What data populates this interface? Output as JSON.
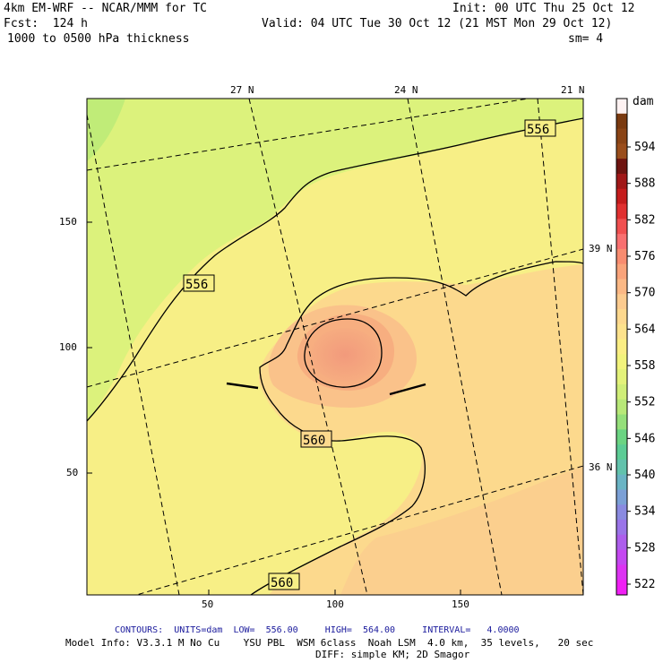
{
  "header": {
    "model": "4km EM-WRF -- NCAR/MMM for TC",
    "init": "Init: 00 UTC Thu 25 Oct 12",
    "forecast": "Fcst:  124 h",
    "valid": "Valid: 04 UTC Tue 30 Oct 12 (21 MST Mon 29 Oct 12)",
    "field": "1000 to 0500 hPa thickness",
    "smoothing": "sm= 4"
  },
  "colorbar": {
    "unit": "dam",
    "labels": [
      "594",
      "588",
      "582",
      "576",
      "570",
      "564",
      "558",
      "552",
      "546",
      "540",
      "534",
      "528",
      "522"
    ],
    "colors": [
      "#fef2f2",
      "#7a3a10",
      "#8a4416",
      "#9a4e1c",
      "#6e1410",
      "#a01818",
      "#c41c1c",
      "#e03030",
      "#f05050",
      "#f87070",
      "#f88c70",
      "#f9a37a",
      "#fbb885",
      "#fccb8f",
      "#fdd88e",
      "#fde28c",
      "#fbee84",
      "#f2f37c",
      "#e3f27a",
      "#d0ee78",
      "#b8e878",
      "#95df7a",
      "#6bd482",
      "#5ccc95",
      "#62c2ac",
      "#6ab4c4",
      "#7ba0d6",
      "#8a8ae0",
      "#9a74e8",
      "#ad5eec",
      "#c448f0",
      "#dc34f2",
      "#f020f4"
    ]
  },
  "axes": {
    "x_ticks": [
      "50",
      "100",
      "150"
    ],
    "y_ticks": [
      "150",
      "100",
      "50"
    ],
    "lat_labels_top": [
      "27 N",
      "24 N",
      "21 N"
    ],
    "lat_labels_right": [
      "39 N",
      "36 N"
    ]
  },
  "contours": {
    "labels": [
      "556",
      "556",
      "560",
      "560"
    ],
    "units_text": "CONTOURS:  UNITS=dam  LOW=  556.00     HIGH=  564.00     INTERVAL=   4.0000"
  },
  "footer": {
    "model_info": "Model Info: V3.3.1 M No Cu    YSU PBL  WSM 6class  Noah LSM  4.0 km,  35 levels,   20 sec",
    "diff": "DIFF: simple KM; 2D Smagor"
  },
  "colors": {
    "green": "#c6ef7a",
    "light_green": "#e2f27c",
    "yellow": "#f9ee84",
    "pale_orange": "#fcd98c",
    "orange": "#fac58a",
    "dark_orange": "#f6a47c",
    "core": "#f2907a",
    "contour_label_color": "#000000",
    "footer_blue": "#1a1a9c"
  }
}
